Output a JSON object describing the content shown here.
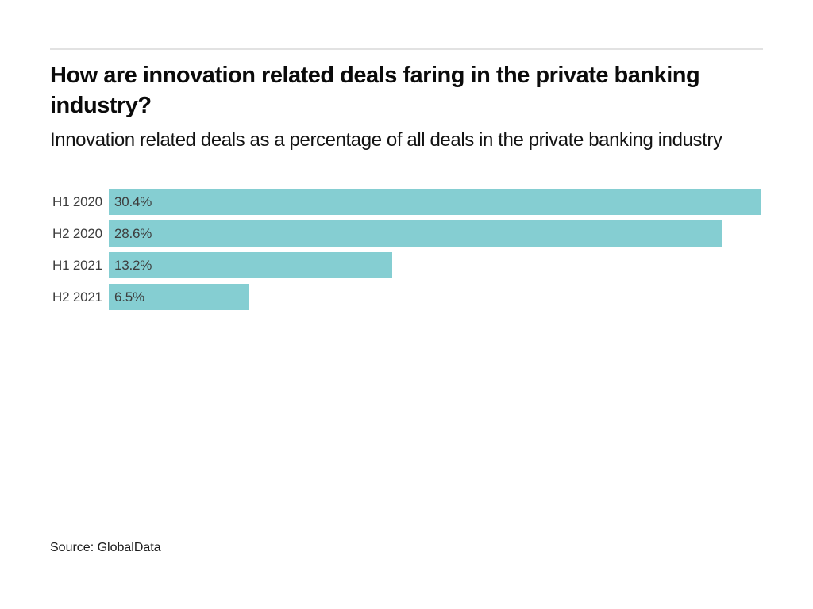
{
  "header": {
    "title": "How are innovation related deals faring in the private banking industry?",
    "subtitle": "Innovation related deals as a percentage of all deals in the private banking industry"
  },
  "chart_data": {
    "type": "bar",
    "orientation": "horizontal",
    "title": "How are innovation related deals faring in the private banking industry?",
    "subtitle": "Innovation related deals as a percentage of all deals in the private banking industry",
    "categories": [
      "H1 2020",
      "H2 2020",
      "H1 2021",
      "H2 2021"
    ],
    "values": [
      30.4,
      28.6,
      13.2,
      6.5
    ],
    "value_labels": [
      "30.4%",
      "28.6%",
      "13.2%",
      "6.5%"
    ],
    "xlabel": "",
    "ylabel": "",
    "xlim": [
      0,
      30.4
    ],
    "grid": false,
    "legend": false,
    "bar_color": "#85ced2",
    "text_color": "#3d3d3d"
  },
  "footer": {
    "source": "Source: GlobalData"
  },
  "colors": {
    "background": "#ffffff",
    "divider": "#e2e2e2",
    "bar": "#85ced2",
    "label_text": "#3d3d3d"
  }
}
